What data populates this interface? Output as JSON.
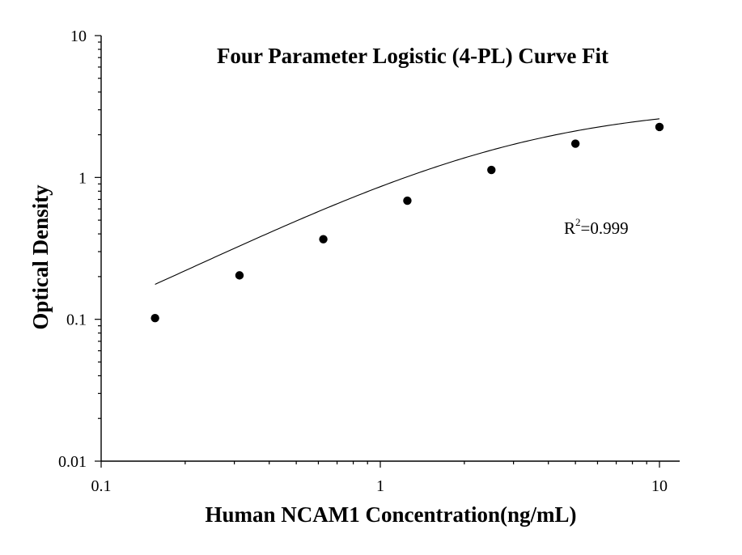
{
  "chart_data": {
    "type": "scatter",
    "title": "Four Parameter Logistic (4-PL) Curve Fit",
    "xlabel": "Human NCAM1 Concentration(ng/mL)",
    "ylabel": "Optical Density",
    "x_scale": "log",
    "y_scale": "log",
    "xlim": [
      0.1,
      12
    ],
    "ylim": [
      0.01,
      10
    ],
    "x_ticks": [
      {
        "value": 0.1,
        "label": "0.1"
      },
      {
        "value": 1,
        "label": "1"
      },
      {
        "value": 10,
        "label": "10"
      }
    ],
    "y_ticks": [
      {
        "value": 0.01,
        "label": "0.01"
      },
      {
        "value": 0.1,
        "label": "0.1"
      },
      {
        "value": 1,
        "label": "1"
      },
      {
        "value": 10,
        "label": "10"
      }
    ],
    "grid": false,
    "series": [
      {
        "x": [
          0.156,
          0.313,
          0.625,
          1.25,
          2.5,
          5,
          10
        ],
        "y": [
          0.102,
          0.204,
          0.367,
          0.686,
          1.13,
          1.73,
          2.27
        ]
      }
    ],
    "fit_curve": {
      "model": "4PL",
      "A": 0.015,
      "B": 1.025,
      "C": 2.8,
      "D": 3.29
    },
    "annotation": {
      "base": "R",
      "superscript": "2",
      "rest": "=0.999"
    },
    "colors": {
      "points": "#000000",
      "curve": "#000000",
      "axis": "#000000"
    }
  }
}
